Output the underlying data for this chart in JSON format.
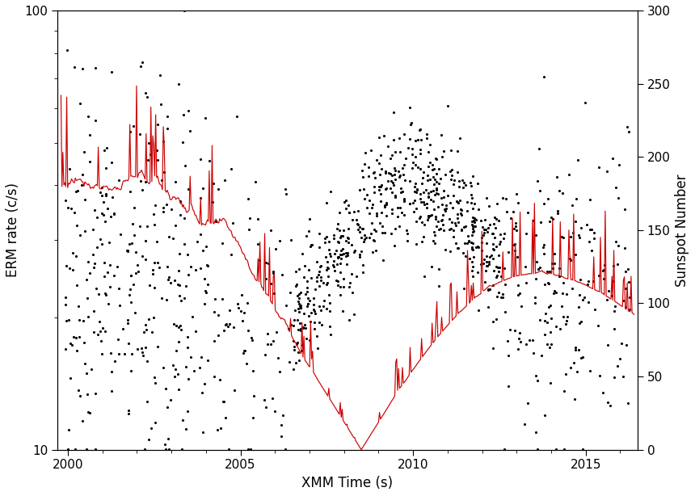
{
  "xlabel": "XMM Time (s)",
  "ylabel_left": "ERM rate (c/s)",
  "ylabel_right": "Sunspot Number",
  "xlim": [
    1999.7,
    2016.5
  ],
  "ylim_log": [
    10,
    100
  ],
  "ylim_right": [
    0,
    300
  ],
  "xticks": [
    2000,
    2005,
    2010,
    2015
  ],
  "yticks_right": [
    0,
    50,
    100,
    150,
    200,
    250,
    300
  ],
  "scatter_color": "black",
  "line_color": "#cc0000",
  "scatter_size": 5,
  "background": "white",
  "figsize": [
    8.6,
    6.14
  ],
  "dpi": 100
}
